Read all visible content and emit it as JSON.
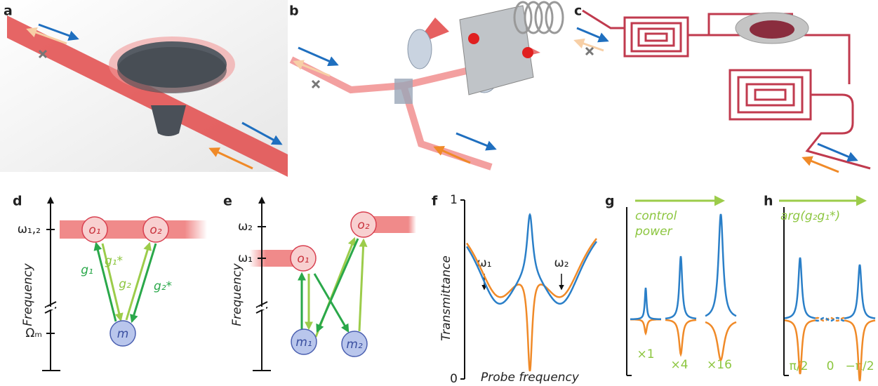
{
  "panel_labels": [
    "a",
    "b",
    "c",
    "d",
    "e",
    "f",
    "g",
    "h"
  ],
  "d": {
    "axis_label": "Frequency",
    "level_high": "ω₁,₂",
    "level_low": "Ωₘ",
    "nodes": [
      "o₁",
      "o₂",
      "m"
    ],
    "couplings": [
      "g₁",
      "g₁*",
      "g₂",
      "g₂*"
    ]
  },
  "e": {
    "axis_label": "Frequency",
    "levels": [
      "ω₂",
      "ω₁"
    ],
    "nodes": [
      "o₁",
      "o₂",
      "m₁",
      "m₂"
    ]
  },
  "f": {
    "y_axis_label": "Transmittance",
    "x_axis_label": "Probe frequency",
    "y_top": "1",
    "y_bottom": "0",
    "markers": [
      "ω₁",
      "ω₂"
    ]
  },
  "g": {
    "arrow_label": [
      "control",
      "power"
    ],
    "scales": [
      "×1",
      "×4",
      "×16"
    ]
  },
  "h": {
    "arrow_label": "arg(g₂g₁*)",
    "phases": [
      "π/2",
      "0",
      "−π/2"
    ]
  }
}
